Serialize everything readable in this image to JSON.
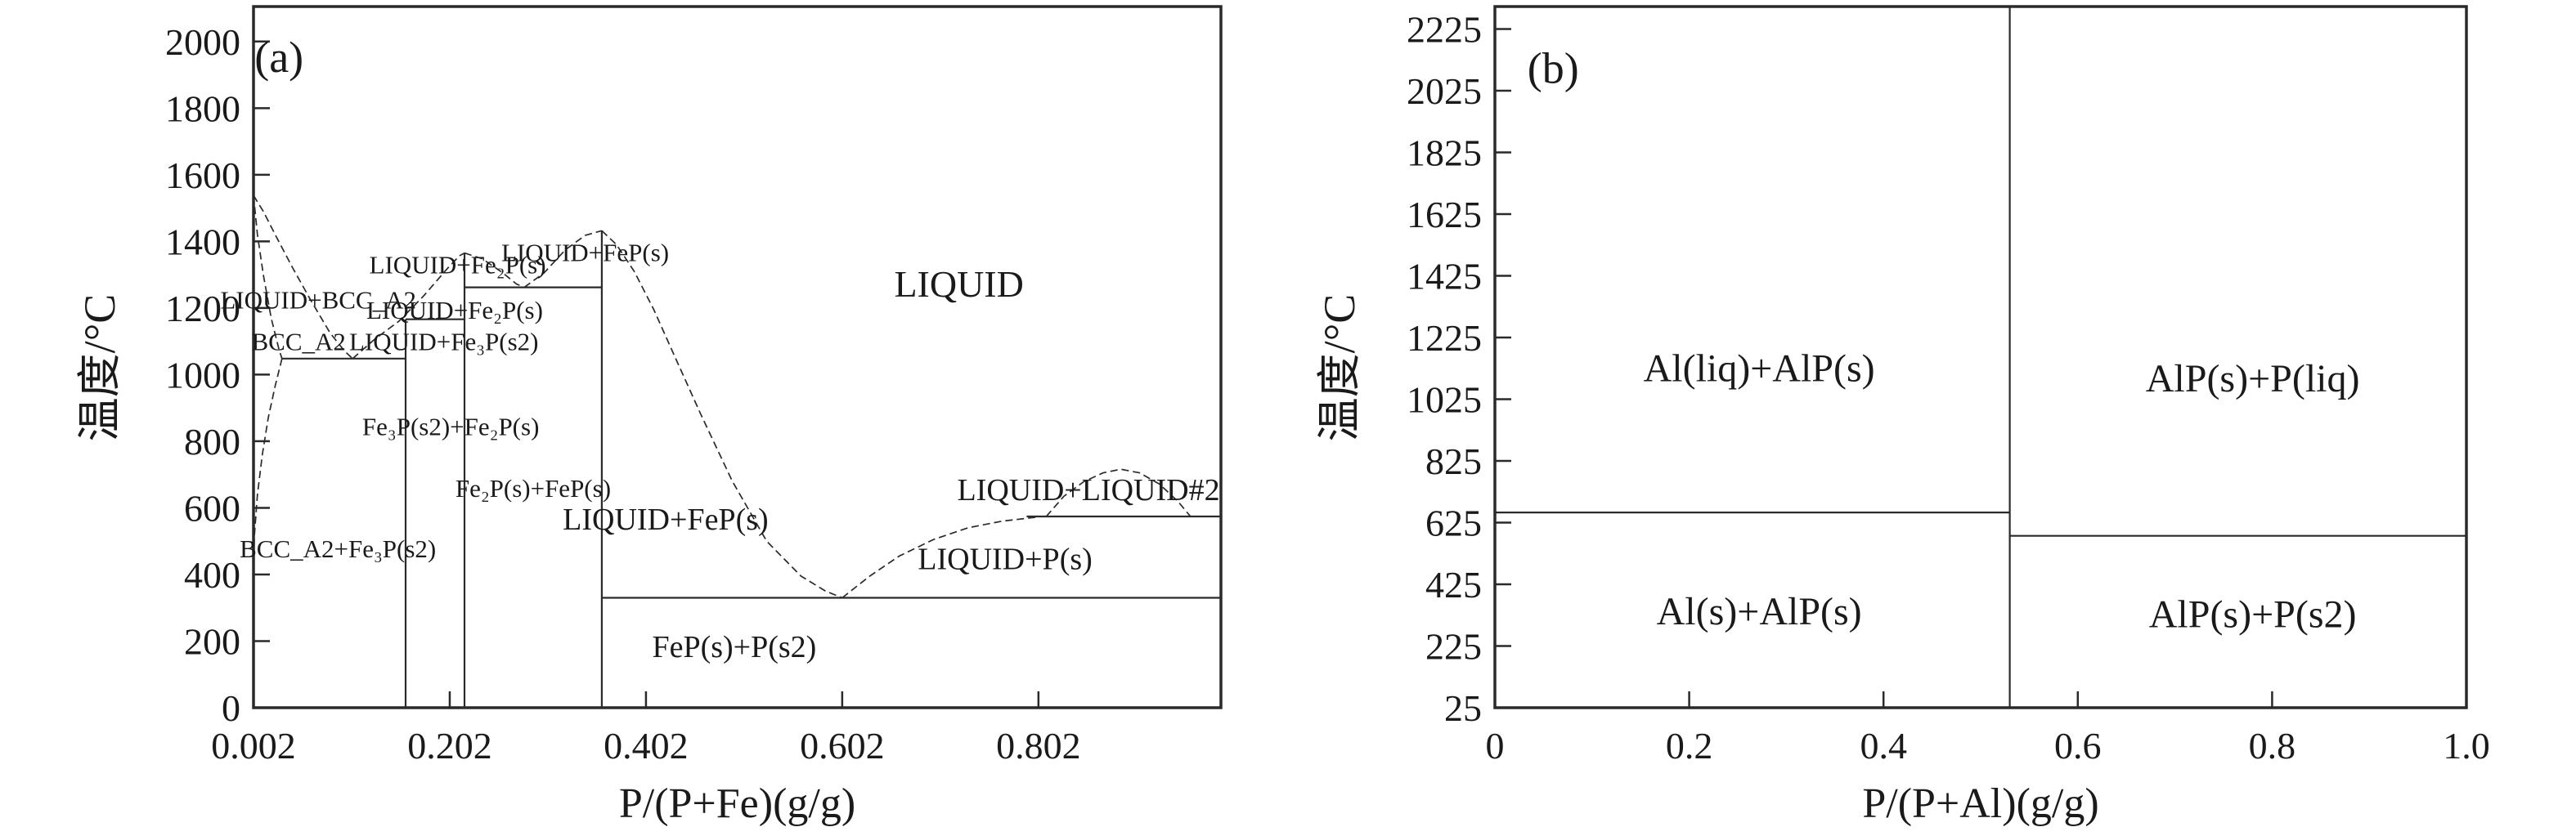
{
  "figure": {
    "background": "#ffffff",
    "line_color": "#2a2a2a",
    "text_color": "#1a1a1a"
  },
  "chart_data": [
    {
      "type": "line",
      "subtype": "phase-diagram",
      "system": "Fe-P",
      "xlabel": "P/(P+Fe)(g/g)",
      "ylabel": "温度/°C",
      "xlim": [
        0.002,
        0.988
      ],
      "ylim": [
        0,
        2105
      ],
      "grid": false,
      "x_ticks": [
        {
          "v": 0.002,
          "label": "0.002"
        },
        {
          "v": 0.202,
          "label": "0.202"
        },
        {
          "v": 0.402,
          "label": "0.402"
        },
        {
          "v": 0.602,
          "label": "0.602"
        },
        {
          "v": 0.802,
          "label": "0.802"
        }
      ],
      "y_ticks": [
        {
          "v": 0,
          "label": "0"
        },
        {
          "v": 200,
          "label": "200"
        },
        {
          "v": 400,
          "label": "400"
        },
        {
          "v": 600,
          "label": "600"
        },
        {
          "v": 800,
          "label": "800"
        },
        {
          "v": 1000,
          "label": "1000"
        },
        {
          "v": 1200,
          "label": "1200"
        },
        {
          "v": 1400,
          "label": "1400"
        },
        {
          "v": 1600,
          "label": "1600"
        },
        {
          "v": 1800,
          "label": "1800"
        },
        {
          "v": 2000,
          "label": "2000"
        }
      ],
      "boundaries": [
        {
          "name": "liquidus-bcc-left",
          "style": "dashed",
          "points": [
            [
              0.002,
              1538
            ],
            [
              0.012,
              1490
            ],
            [
              0.025,
              1415
            ],
            [
              0.042,
              1320
            ],
            [
              0.06,
              1225
            ],
            [
              0.08,
              1125
            ],
            [
              0.095,
              1070
            ],
            [
              0.103,
              1048
            ]
          ]
        },
        {
          "name": "solidus-bcc",
          "style": "dashed",
          "points": [
            [
              0.002,
              1538
            ],
            [
              0.006,
              1420
            ],
            [
              0.012,
              1300
            ],
            [
              0.02,
              1170
            ],
            [
              0.028,
              1075
            ],
            [
              0.031,
              1048
            ]
          ]
        },
        {
          "name": "bcc-solvus",
          "style": "dashed",
          "points": [
            [
              0.031,
              1048
            ],
            [
              0.024,
              965
            ],
            [
              0.017,
              870
            ],
            [
              0.011,
              760
            ],
            [
              0.006,
              640
            ],
            [
              0.003,
              520
            ],
            [
              0.002,
              440
            ]
          ]
        },
        {
          "name": "eutectic-line-1048",
          "style": "solid",
          "points": [
            [
              0.031,
              1048
            ],
            [
              0.157,
              1048
            ]
          ]
        },
        {
          "name": "fe3p-vertical",
          "style": "solid",
          "points": [
            [
              0.157,
              0
            ],
            [
              0.157,
              1166
            ]
          ]
        },
        {
          "name": "peritectic-line-1166",
          "style": "solid",
          "points": [
            [
              0.157,
              1166
            ],
            [
              0.217,
              1166
            ]
          ]
        },
        {
          "name": "liquidus-rise-to-fe2p",
          "style": "dashed",
          "points": [
            [
              0.103,
              1048
            ],
            [
              0.125,
              1105
            ],
            [
              0.15,
              1160
            ],
            [
              0.175,
              1235
            ],
            [
              0.2,
              1320
            ],
            [
              0.212,
              1357
            ],
            [
              0.217,
              1365
            ]
          ]
        },
        {
          "name": "fe2p-vertical",
          "style": "solid",
          "points": [
            [
              0.217,
              0
            ],
            [
              0.217,
              1365
            ]
          ]
        },
        {
          "name": "liquidus-fe2p-right",
          "style": "dashed",
          "points": [
            [
              0.217,
              1365
            ],
            [
              0.235,
              1348
            ],
            [
              0.255,
              1308
            ],
            [
              0.27,
              1272
            ],
            [
              0.278,
              1262
            ]
          ]
        },
        {
          "name": "eutectic-line-1262",
          "style": "solid",
          "points": [
            [
              0.217,
              1262
            ],
            [
              0.357,
              1262
            ]
          ]
        },
        {
          "name": "liquidus-fep-left",
          "style": "dashed",
          "points": [
            [
              0.278,
              1262
            ],
            [
              0.298,
              1305
            ],
            [
              0.32,
              1375
            ],
            [
              0.34,
              1418
            ],
            [
              0.357,
              1432
            ]
          ]
        },
        {
          "name": "fep-vertical",
          "style": "solid",
          "points": [
            [
              0.357,
              0
            ],
            [
              0.357,
              1432
            ]
          ]
        },
        {
          "name": "liquidus-fep-right",
          "style": "dashed",
          "points": [
            [
              0.357,
              1432
            ],
            [
              0.372,
              1390
            ],
            [
              0.39,
              1310
            ],
            [
              0.41,
              1195
            ],
            [
              0.432,
              1050
            ],
            [
              0.458,
              880
            ],
            [
              0.49,
              680
            ],
            [
              0.525,
              500
            ],
            [
              0.56,
              395
            ],
            [
              0.585,
              350
            ],
            [
              0.602,
              330
            ]
          ]
        },
        {
          "name": "eutectic-line-330",
          "style": "solid",
          "points": [
            [
              0.357,
              330
            ],
            [
              0.988,
              330
            ]
          ]
        },
        {
          "name": "liquidus-p-rise",
          "style": "dashed",
          "points": [
            [
              0.602,
              330
            ],
            [
              0.63,
              395
            ],
            [
              0.66,
              455
            ],
            [
              0.695,
              505
            ],
            [
              0.73,
              540
            ],
            [
              0.765,
              560
            ],
            [
              0.8,
              572
            ]
          ]
        },
        {
          "name": "monotectic-line-574",
          "style": "solid",
          "points": [
            [
              0.79,
              574
            ],
            [
              0.988,
              574
            ]
          ]
        },
        {
          "name": "liquid-liquid2-dome",
          "style": "dashed",
          "points": [
            [
              0.81,
              574
            ],
            [
              0.828,
              635
            ],
            [
              0.848,
              678
            ],
            [
              0.868,
              705
            ],
            [
              0.886,
              716
            ],
            [
              0.905,
              705
            ],
            [
              0.925,
              672
            ],
            [
              0.944,
              620
            ],
            [
              0.957,
              574
            ]
          ]
        }
      ],
      "region_labels": [
        {
          "text": "(a)",
          "x": 0.028,
          "y": 1955,
          "size": 54
        },
        {
          "text": "LIQUID",
          "x": 0.721,
          "y": 1273,
          "size": 46
        },
        {
          "text": "LIQUID+BCC_A2",
          "x": 0.068,
          "y": 1225,
          "size": 31
        },
        {
          "text": "BCC_A2",
          "x": 0.048,
          "y": 1100,
          "size": 31
        },
        {
          "text": "LIQUID+Fe₃P(s2)",
          "x": 0.196,
          "y": 1100,
          "size": 31
        },
        {
          "text": "LIQUID+Fe₂P(s)",
          "x": 0.207,
          "y": 1195,
          "size": 31
        },
        {
          "text": "LIQUID+Fe₂P(s)",
          "x": 0.21,
          "y": 1330,
          "size": 31
        },
        {
          "text": "LIQUID+FeP(s)",
          "x": 0.34,
          "y": 1368,
          "size": 31
        },
        {
          "text": "Fe₃P(s2)+Fe₂P(s)",
          "x": 0.203,
          "y": 845,
          "size": 31
        },
        {
          "text": "Fe₂P(s)+FeP(s)",
          "x": 0.287,
          "y": 660,
          "size": 31
        },
        {
          "text": "BCC_A2+Fe₃P(s2)",
          "x": 0.088,
          "y": 478,
          "size": 31
        },
        {
          "text": "LIQUID+FeP(s)",
          "x": 0.422,
          "y": 567,
          "size": 38
        },
        {
          "text": "LIQUID+LIQUID#2",
          "x": 0.853,
          "y": 656,
          "size": 38
        },
        {
          "text": "LIQUID+P(s)",
          "x": 0.768,
          "y": 448,
          "size": 38
        },
        {
          "text": "FeP(s)+P(s2)",
          "x": 0.492,
          "y": 185,
          "size": 38
        }
      ]
    },
    {
      "type": "line",
      "subtype": "phase-diagram",
      "system": "Al-P",
      "xlabel": "P/(P+Al)(g/g)",
      "ylabel": "温度/°C",
      "xlim": [
        0.0,
        1.0
      ],
      "ylim": [
        25,
        2298
      ],
      "grid": false,
      "x_ticks": [
        {
          "v": 0.0,
          "label": "0"
        },
        {
          "v": 0.2,
          "label": "0.2"
        },
        {
          "v": 0.4,
          "label": "0.4"
        },
        {
          "v": 0.6,
          "label": "0.6"
        },
        {
          "v": 0.8,
          "label": "0.8"
        },
        {
          "v": 1.0,
          "label": "1.0"
        }
      ],
      "y_ticks": [
        {
          "v": 25,
          "label": "25"
        },
        {
          "v": 225,
          "label": "225"
        },
        {
          "v": 425,
          "label": "425"
        },
        {
          "v": 625,
          "label": "625"
        },
        {
          "v": 825,
          "label": "825"
        },
        {
          "v": 1025,
          "label": "1025"
        },
        {
          "v": 1225,
          "label": "1225"
        },
        {
          "v": 1425,
          "label": "1425"
        },
        {
          "v": 1625,
          "label": "1625"
        },
        {
          "v": 1825,
          "label": "1825"
        },
        {
          "v": 2025,
          "label": "2025"
        },
        {
          "v": 2225,
          "label": "2225"
        }
      ],
      "boundaries": [
        {
          "name": "alp-vertical",
          "style": "solid",
          "points": [
            [
              0.53,
              25
            ],
            [
              0.53,
              2298
            ]
          ]
        },
        {
          "name": "al-melting-line-658",
          "style": "solid",
          "points": [
            [
              0.0,
              658
            ],
            [
              0.53,
              658
            ]
          ]
        },
        {
          "name": "p-melting-line-582",
          "style": "solid",
          "points": [
            [
              0.53,
              582
            ],
            [
              1.0,
              582
            ]
          ]
        }
      ],
      "region_labels": [
        {
          "text": "(b)",
          "x": 0.06,
          "y": 2100,
          "size": 54
        },
        {
          "text": "Al(liq)+AlP(s)",
          "x": 0.272,
          "y": 1128,
          "size": 48
        },
        {
          "text": "AlP(s)+P(liq)",
          "x": 0.78,
          "y": 1095,
          "size": 48
        },
        {
          "text": "Al(s)+AlP(s)",
          "x": 0.272,
          "y": 340,
          "size": 48
        },
        {
          "text": "AlP(s)+P(s2)",
          "x": 0.78,
          "y": 330,
          "size": 48
        }
      ]
    }
  ]
}
